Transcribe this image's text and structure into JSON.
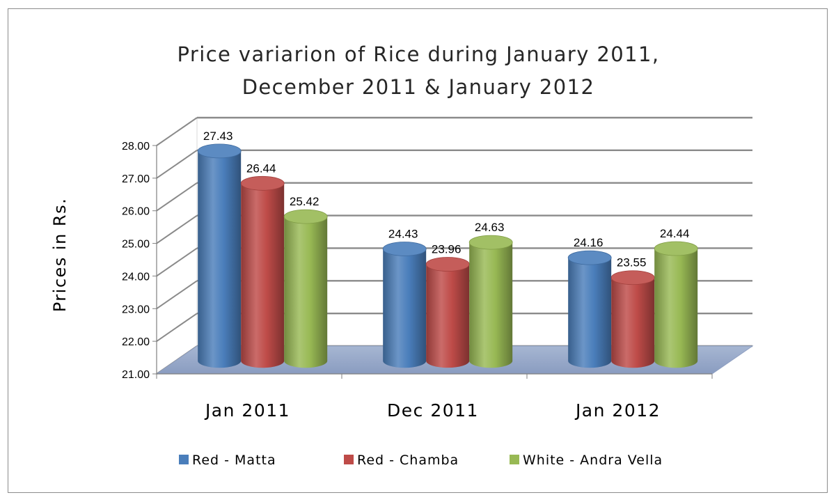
{
  "chart_data": {
    "type": "bar",
    "title_lines": [
      "Price variarion of Rice during January 2011,",
      "December 2011 & January 2012"
    ],
    "ylabel": "Prices in Rs.",
    "categories": [
      "Jan 2011",
      "Dec 2011",
      "Jan 2012"
    ],
    "ylim": [
      21,
      28
    ],
    "yticks": [
      "21.00",
      "22.00",
      "23.00",
      "24.00",
      "25.00",
      "26.00",
      "27.00",
      "28.00"
    ],
    "grid": true,
    "legend_position": "bottom",
    "series": [
      {
        "name": "Red - Matta",
        "values": [
          27.43,
          24.43,
          24.16
        ],
        "labels": [
          "27.43",
          "24.43",
          "24.16"
        ],
        "color": "#4a7ebb"
      },
      {
        "name": "Red - Chamba",
        "values": [
          26.44,
          23.96,
          23.55
        ],
        "labels": [
          "26.44",
          "23.96",
          "23.55"
        ],
        "color": "#be4b48"
      },
      {
        "name": "White - Andra Vella",
        "values": [
          25.42,
          24.63,
          24.44
        ],
        "labels": [
          "25.42",
          "24.63",
          "24.44"
        ],
        "color": "#98b954"
      }
    ]
  }
}
